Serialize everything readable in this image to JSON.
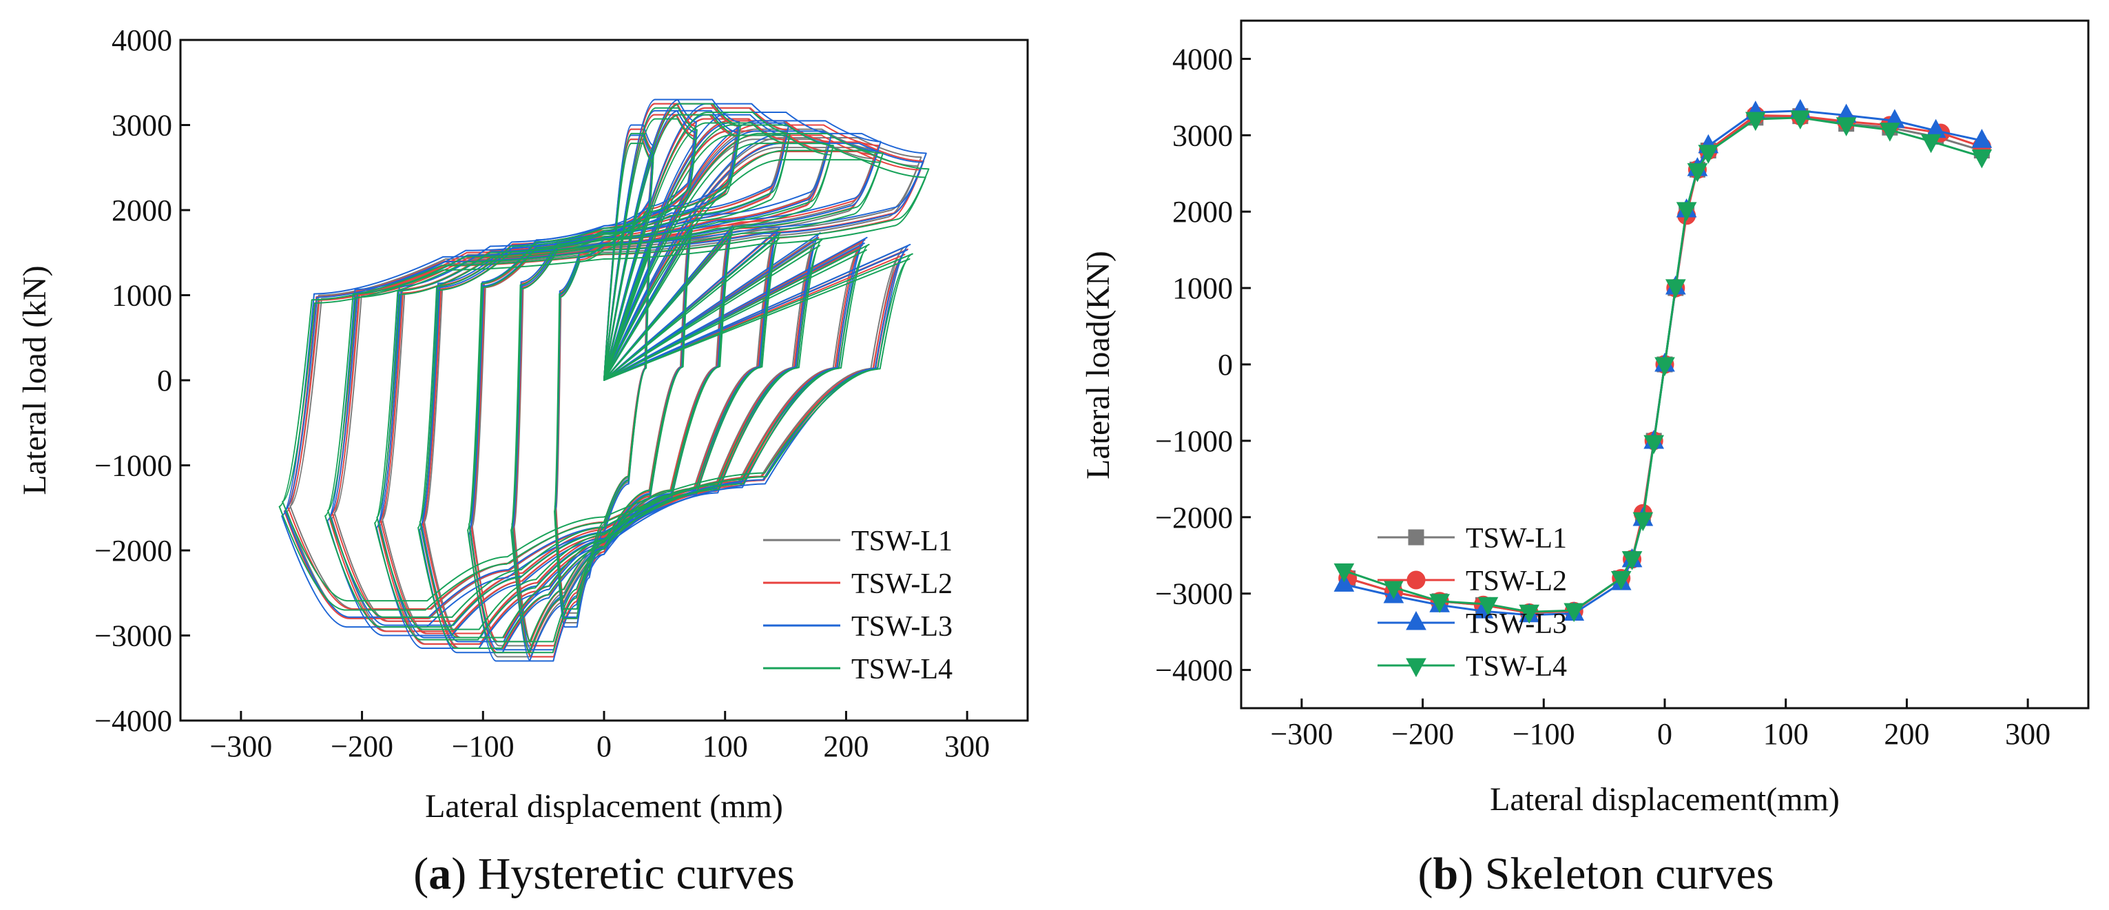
{
  "chart_data": [
    {
      "type": "line",
      "title": "Hysteretic curves",
      "caption_letter": "a",
      "caption_text": "Hysteretic curves",
      "xlabel": "Lateral displacement (mm)",
      "ylabel": "Lateral load (kN)",
      "xlim": [
        -350,
        350
      ],
      "ylim": [
        -4000,
        4000
      ],
      "xticks": [
        -300,
        -200,
        -100,
        0,
        100,
        200,
        300
      ],
      "yticks": [
        -4000,
        -3000,
        -2000,
        -1000,
        0,
        1000,
        2000,
        3000,
        4000
      ],
      "xtick_labels": [
        "−300",
        "−200",
        "−100",
        "0",
        "100",
        "200",
        "300"
      ],
      "ytick_labels": [
        "−4000",
        "−3000",
        "−2000",
        "−1000",
        "0",
        "1000",
        "2000",
        "3000",
        "4000"
      ],
      "legend_position": "bottom-right",
      "amplitudes_mm": [
        40,
        75,
        110,
        150,
        185,
        225,
        262
      ],
      "series": [
        {
          "name": "TSW-L1",
          "color": "#7a7a7a",
          "marker": "none",
          "peak_pos_kN": [
            2950,
            3250,
            3250,
            3200,
            3050,
            2950,
            2850
          ],
          "peak_neg_kN": [
            -2850,
            -3250,
            -3250,
            -3150,
            -3100,
            -2950,
            -2800
          ]
        },
        {
          "name": "TSW-L2",
          "color": "#e8423f",
          "marker": "none",
          "peak_pos_kN": [
            2950,
            3250,
            3250,
            3200,
            3050,
            3000,
            2800
          ],
          "peak_neg_kN": [
            -2800,
            -3250,
            -3200,
            -3150,
            -3100,
            -2950,
            -2800
          ]
        },
        {
          "name": "TSW-L3",
          "color": "#1f66d6",
          "marker": "none",
          "peak_pos_kN": [
            3000,
            3300,
            3300,
            3250,
            3150,
            3050,
            2900
          ],
          "peak_neg_kN": [
            -2900,
            -3300,
            -3300,
            -3200,
            -3150,
            -3000,
            -2900
          ]
        },
        {
          "name": "TSW-L4",
          "color": "#19a35a",
          "marker": "none",
          "peak_pos_kN": [
            2900,
            3200,
            3250,
            3150,
            3000,
            2900,
            2700
          ],
          "peak_neg_kN": [
            -2800,
            -3200,
            -3200,
            -3150,
            -3050,
            -2900,
            -2700
          ]
        }
      ]
    },
    {
      "type": "line",
      "title": "Skeleton curves",
      "caption_letter": "b",
      "caption_text": "Skeleton curves",
      "xlabel": "Lateral displacement(mm)",
      "ylabel": "Lateral load(KN)",
      "xlim": [
        -350,
        350
      ],
      "ylim": [
        -4500,
        4500
      ],
      "xticks": [
        -300,
        -200,
        -100,
        0,
        100,
        200,
        300
      ],
      "yticks": [
        -4000,
        -3000,
        -2000,
        -1000,
        0,
        1000,
        2000,
        3000,
        4000
      ],
      "xtick_labels": [
        "−300",
        "−200",
        "−100",
        "0",
        "100",
        "200",
        "300"
      ],
      "ytick_labels": [
        "−4000",
        "−3000",
        "−2000",
        "−1000",
        "0",
        "1000",
        "2000",
        "3000",
        "4000"
      ],
      "legend_position": "bottom-right",
      "series": [
        {
          "name": "TSW-L1",
          "color": "#7a7a7a",
          "marker": "square",
          "x": [
            -262,
            -224,
            -186,
            -150,
            -112,
            -75,
            -36,
            -27,
            -18,
            -9,
            0,
            9,
            18,
            27,
            36,
            75,
            112,
            150,
            186,
            224,
            262
          ],
          "y": [
            -2800,
            -2980,
            -3100,
            -3150,
            -3250,
            -3230,
            -2800,
            -2550,
            -2000,
            -1000,
            0,
            1000,
            2000,
            2550,
            2800,
            3230,
            3250,
            3150,
            3100,
            2980,
            2800
          ]
        },
        {
          "name": "TSW-L2",
          "color": "#e8423f",
          "marker": "circle",
          "x": [
            -262,
            -224,
            -186,
            -150,
            -112,
            -75,
            -36,
            -27,
            -18,
            -9,
            0,
            9,
            18,
            27,
            36,
            75,
            112,
            150,
            186,
            228,
            262
          ],
          "y": [
            -2800,
            -2980,
            -3100,
            -3150,
            -3250,
            -3230,
            -2800,
            -2550,
            -1950,
            -1000,
            0,
            1000,
            1950,
            2550,
            2800,
            3260,
            3250,
            3180,
            3130,
            3030,
            2850
          ]
        },
        {
          "name": "TSW-L3",
          "color": "#1f66d6",
          "marker": "triangle-up",
          "x": [
            -265,
            -224,
            -186,
            -150,
            -112,
            -75,
            -36,
            -27,
            -18,
            -9,
            0,
            9,
            18,
            27,
            36,
            75,
            112,
            150,
            190,
            224,
            262
          ],
          "y": [
            -2880,
            -3030,
            -3150,
            -3230,
            -3280,
            -3260,
            -2860,
            -2560,
            -2020,
            -1010,
            0,
            1010,
            2020,
            2560,
            2860,
            3300,
            3320,
            3260,
            3190,
            3060,
            2930
          ]
        },
        {
          "name": "TSW-L4",
          "color": "#19a35a",
          "marker": "triangle-down",
          "x": [
            -265,
            -224,
            -186,
            -146,
            -112,
            -75,
            -36,
            -27,
            -18,
            -9,
            0,
            9,
            18,
            27,
            36,
            75,
            112,
            150,
            186,
            220,
            262
          ],
          "y": [
            -2700,
            -2920,
            -3100,
            -3140,
            -3240,
            -3220,
            -2800,
            -2540,
            -2030,
            -1020,
            0,
            1020,
            2030,
            2540,
            2780,
            3210,
            3230,
            3140,
            3070,
            2920,
            2720
          ]
        }
      ]
    }
  ]
}
